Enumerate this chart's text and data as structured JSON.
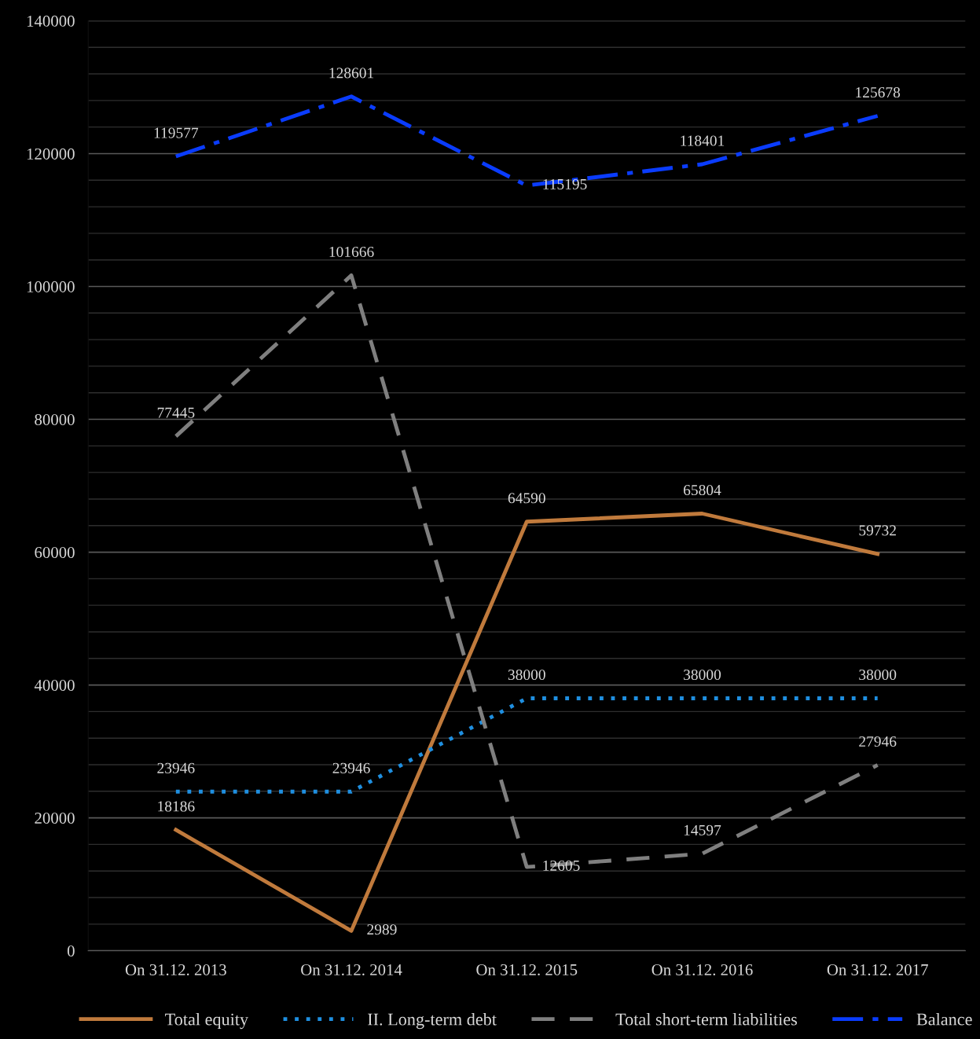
{
  "chart_data": {
    "type": "line",
    "categories": [
      "On 31.12. 2013",
      "On 31.12. 2014",
      "On 31.12. 2015",
      "On 31.12. 2016",
      "On 31.12. 2017"
    ],
    "series": [
      {
        "name": "Total equity",
        "color": "#c07a3c",
        "line_style": "solid",
        "values": [
          18186,
          2989,
          64590,
          65804,
          59732
        ]
      },
      {
        "name": "II. Long-term debt",
        "color": "#1f8fe0",
        "line_style": "dotted",
        "values": [
          23946,
          23946,
          38000,
          38000,
          38000
        ]
      },
      {
        "name": "Total short-term liabilities",
        "color": "#7f7f7f",
        "line_style": "dashed",
        "values": [
          77445,
          101666,
          12605,
          14597,
          27946
        ]
      },
      {
        "name": "Balance",
        "color": "#0a3cff",
        "line_style": "dashdot",
        "values": [
          119577,
          128601,
          115195,
          118401,
          125678
        ]
      }
    ],
    "ylim": [
      0,
      140000
    ],
    "yticks": [
      0,
      20000,
      40000,
      60000,
      80000,
      100000,
      120000,
      140000
    ],
    "grid": "y",
    "legend": "bottom",
    "data_labels": true,
    "marker": "none"
  }
}
